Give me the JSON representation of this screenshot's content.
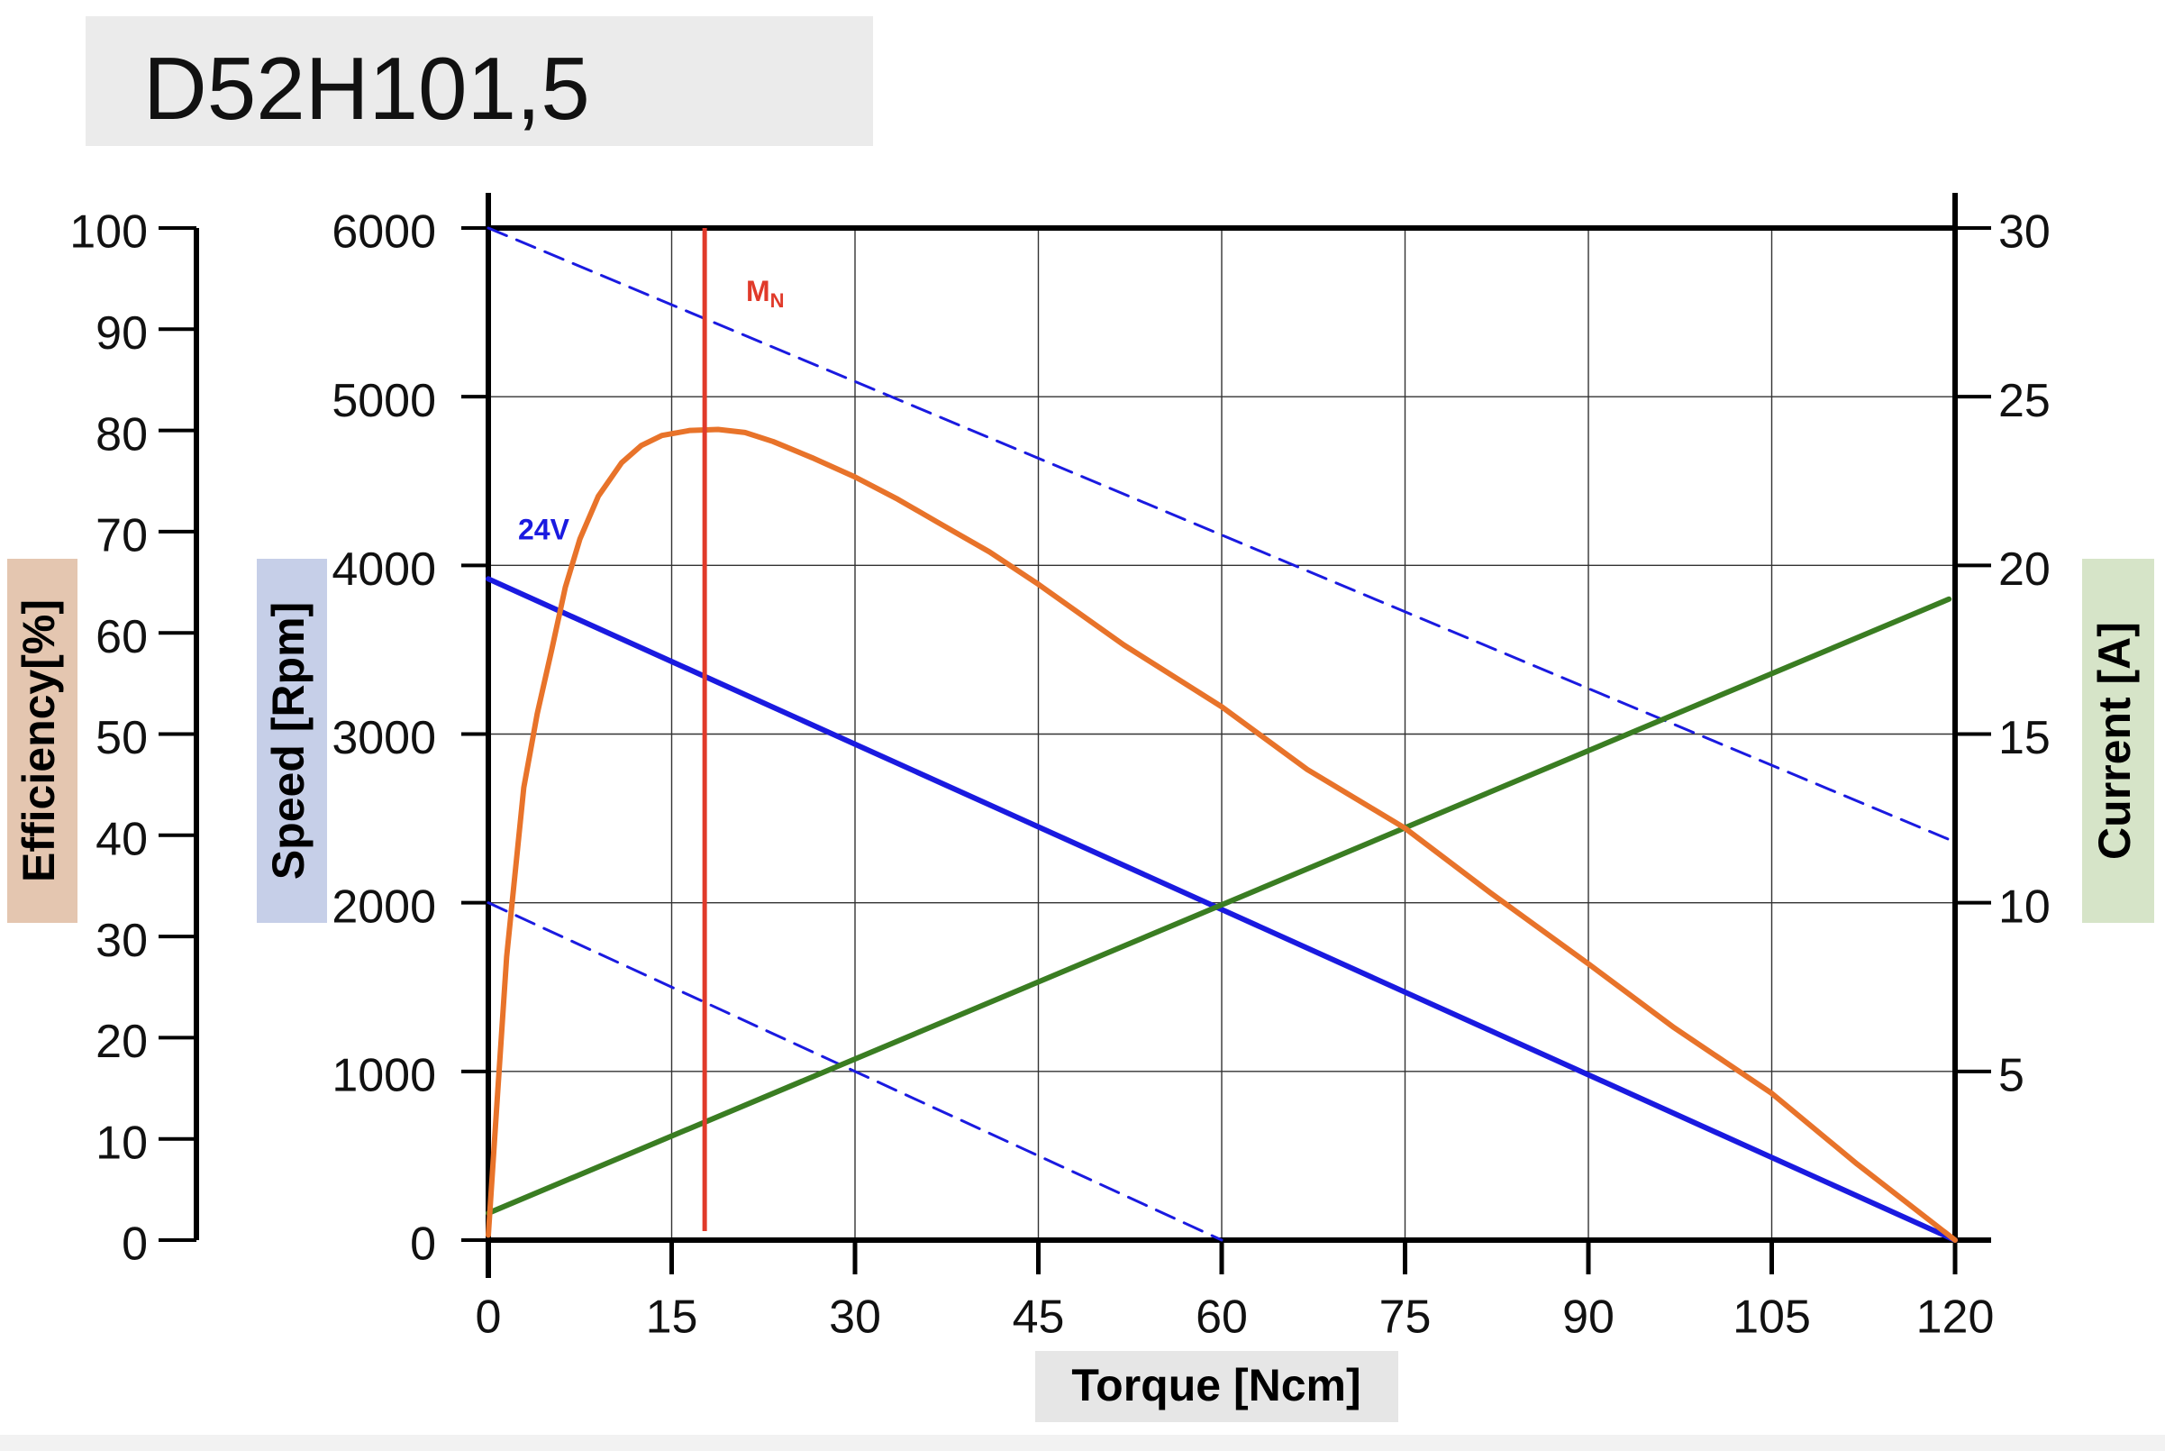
{
  "chart_data": {
    "type": "line",
    "title": "D52H101,5",
    "x_label": "Torque [Ncm]",
    "y_label": "Speed [Rpm]",
    "y2_label": "Current [A]",
    "y3_label": "Efficiency[%]",
    "xlim": [
      0,
      120
    ],
    "xticks": [
      0,
      15,
      30,
      45,
      60,
      75,
      90,
      105,
      120
    ],
    "ylim": [
      0,
      6000
    ],
    "yticks": [
      0,
      1000,
      2000,
      3000,
      4000,
      5000,
      6000
    ],
    "y2lim": [
      0,
      30
    ],
    "y2ticks": [
      5,
      10,
      15,
      20,
      25,
      30
    ],
    "y3lim": [
      0,
      100
    ],
    "y3ticks": [
      0,
      10,
      20,
      30,
      40,
      50,
      60,
      70,
      80,
      90,
      100
    ],
    "grid": true,
    "series": [
      {
        "name": "24V",
        "color": "#1a1ae0",
        "x": [
          0,
          120
        ],
        "values": [
          3920,
          0
        ]
      },
      {
        "color": "#1a1ae0",
        "dash": true,
        "x": [
          0,
          120
        ],
        "values": [
          6000,
          2360
        ]
      },
      {
        "color": "#1a1ae0",
        "dash": true,
        "x": [
          0,
          60
        ],
        "values": [
          2000,
          0
        ]
      },
      {
        "color": "#3a7d22",
        "axis": "y2",
        "x": [
          0,
          119.5
        ],
        "values": [
          0.8,
          19.0
        ]
      },
      {
        "color": "#e8732a",
        "axis": "y3",
        "x": [
          0,
          0.7,
          1.5,
          2.9,
          4,
          5.2,
          6.3,
          7.5,
          9,
          10.9,
          12.5,
          14.2,
          16.5,
          18.8,
          21,
          23.3,
          26.5,
          30,
          33.5,
          36.8,
          41,
          45,
          52,
          60,
          67,
          75,
          82,
          90,
          97,
          105,
          112,
          120
        ],
        "values": [
          0.5,
          13.4,
          28,
          44.7,
          52,
          58.4,
          64.5,
          69.3,
          73.5,
          76.8,
          78.5,
          79.5,
          80,
          80.1,
          79.8,
          78.9,
          77.3,
          75.4,
          73.2,
          70.9,
          68,
          64.8,
          58.8,
          52.7,
          46.5,
          40.7,
          34.3,
          27.3,
          21,
          14.5,
          7.5,
          0
        ]
      }
    ],
    "rated_torque": {
      "label": "M",
      "subscript": "N",
      "x": 17.7,
      "color": "#e03a2a"
    }
  }
}
